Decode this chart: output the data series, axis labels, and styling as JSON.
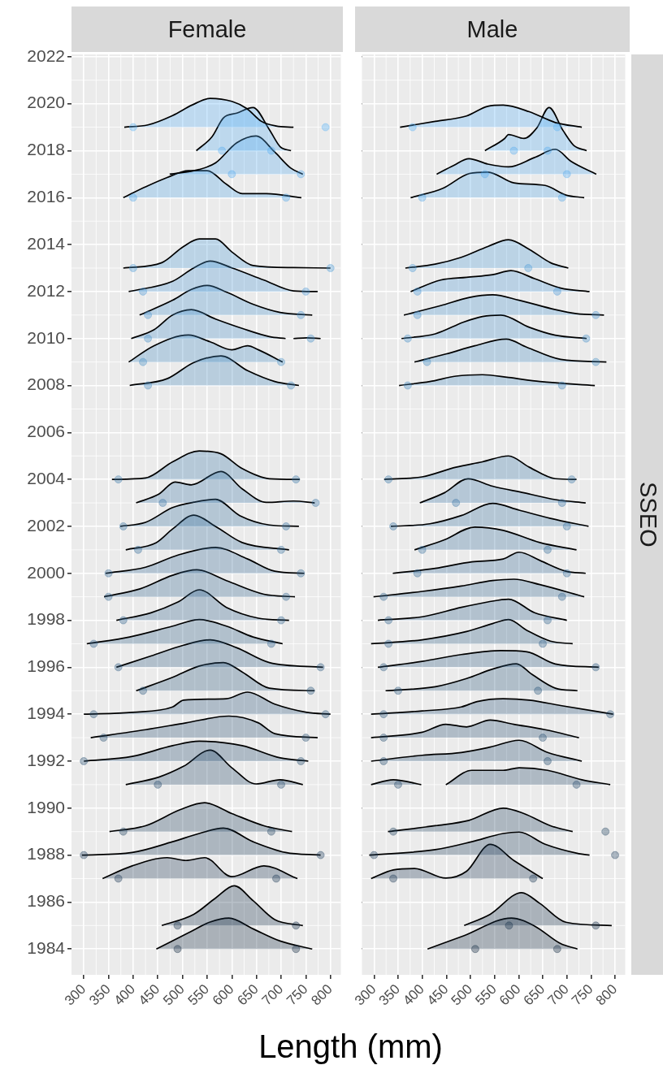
{
  "chart_data": [
    {
      "type": "area",
      "title": "Female",
      "xlabel": "Length (mm)",
      "xlim": [
        275,
        821
      ],
      "ylim": [
        1982.9,
        2022.1
      ],
      "xticks": [
        300,
        350,
        400,
        450,
        500,
        550,
        600,
        650,
        700,
        750,
        800
      ],
      "yticks": [
        1984,
        1986,
        1988,
        1990,
        1992,
        1994,
        1996,
        1998,
        2000,
        2002,
        2004,
        2006,
        2008,
        2010,
        2012,
        2014,
        2016,
        2018,
        2020,
        2022
      ],
      "grid": true,
      "series": [
        {
          "color": "#132b43",
          "x": [
            447,
            512,
            556,
            594,
            643,
            698,
            763
          ],
          "values": [
            1984,
            1984.69,
            1985.15,
            1985.32,
            1984.86,
            1984.34,
            1984
          ]
        },
        {
          "color": "#152f48",
          "x": [
            458,
            523,
            567,
            605,
            643,
            687,
            744
          ],
          "values": [
            1985,
            1985.48,
            1986.17,
            1986.69,
            1986.06,
            1985.25,
            1985
          ]
        },
        {
          "color": "#193652",
          "x": [
            338,
            398,
            469,
            507,
            545,
            600,
            665,
            733
          ],
          "values": [
            1987,
            1987.54,
            1987.89,
            1987.77,
            1987.89,
            1987.08,
            1987.54,
            1987
          ]
        },
        {
          "color": "#1b3a58",
          "x": [
            296,
            398,
            480,
            534,
            583,
            643,
            709,
            780
          ],
          "values": [
            1988,
            1988.11,
            1988.57,
            1988.92,
            1989.15,
            1988.57,
            1988.11,
            1988
          ]
        },
        {
          "color": "#1d3e5d",
          "x": [
            352,
            425,
            496,
            545,
            600,
            665,
            722
          ],
          "values": [
            1989,
            1989.25,
            1989.94,
            1990.23,
            1989.77,
            1989.25,
            1989
          ]
        },
        {
          "color": "#204667",
          "x": [
            385,
            452,
            502,
            556,
            600,
            649,
            698,
            744
          ],
          "values": [
            1991,
            1991.32,
            1991.78,
            1992.47,
            1991.72,
            1991.03,
            1991.21,
            1991
          ]
        },
        {
          "color": "#224a6c",
          "x": [
            300,
            398,
            480,
            534,
            621,
            698,
            755
          ],
          "values": [
            1992,
            1992.2,
            1992.66,
            1992.85,
            1992.66,
            1992.14,
            1992
          ]
        },
        {
          "color": "#244d71",
          "x": [
            314,
            425,
            507,
            594,
            654,
            687,
            774
          ],
          "values": [
            1993,
            1993.34,
            1993.63,
            1993.92,
            1993.63,
            1993.17,
            1993
          ]
        },
        {
          "color": "#265176",
          "x": [
            300,
            398,
            480,
            502,
            589,
            632,
            687,
            752,
            800
          ],
          "values": [
            1994,
            1994.08,
            1994.31,
            1994.6,
            1994.66,
            1994.94,
            1994.43,
            1994.08,
            1994
          ]
        },
        {
          "color": "#28557c",
          "x": [
            406,
            480,
            534,
            583,
            621,
            676,
            768
          ],
          "values": [
            1995,
            1995.57,
            1996.05,
            1996.2,
            1995.8,
            1995.11,
            1995
          ]
        },
        {
          "color": "#2a5981",
          "x": [
            366,
            436,
            502,
            556,
            610,
            676,
            785
          ],
          "values": [
            1996,
            1996.48,
            1996.94,
            1997.17,
            1996.83,
            1996.2,
            1996
          ]
        },
        {
          "color": "#2c5d86",
          "x": [
            306,
            393,
            480,
            534,
            589,
            643,
            703
          ],
          "values": [
            1997,
            1997.29,
            1997.75,
            1998.03,
            1997.75,
            1997.29,
            1997
          ]
        },
        {
          "color": "#2e618b",
          "x": [
            366,
            436,
            491,
            534,
            589,
            654,
            716
          ],
          "values": [
            1998,
            1998.32,
            1998.78,
            1999.3,
            1998.55,
            1998.09,
            1998
          ]
        },
        {
          "color": "#306490",
          "x": [
            341,
            414,
            480,
            529,
            589,
            665,
            728
          ],
          "values": [
            1999,
            1999.34,
            1999.92,
            2000.15,
            1999.69,
            1999.11,
            1999
          ]
        },
        {
          "color": "#326895",
          "x": [
            344,
            425,
            491,
            567,
            632,
            687,
            747
          ],
          "values": [
            2000,
            2000.26,
            2000.78,
            2001.1,
            2000.61,
            2000.09,
            2000
          ]
        },
        {
          "color": "#346c9a",
          "x": [
            385,
            447,
            480,
            523,
            567,
            621,
            716
          ],
          "values": [
            2001,
            2001.31,
            2001.89,
            2002.48,
            2002,
            2001.31,
            2001
          ]
        },
        {
          "color": "#3570a0",
          "x": [
            374,
            425,
            480,
            523,
            567,
            616,
            676,
            736
          ],
          "values": [
            2002,
            2002.17,
            2002.8,
            2003.03,
            2003.15,
            2002.46,
            2002.06,
            2002
          ]
        },
        {
          "color": "#3774a5",
          "x": [
            406,
            452,
            485,
            518,
            578,
            621,
            670,
            725,
            768
          ],
          "values": [
            2003,
            2003.37,
            2003.89,
            2003.77,
            2004.34,
            2003.6,
            2003.02,
            2003.08,
            2003
          ]
        },
        {
          "color": "#3978aa",
          "x": [
            357,
            425,
            480,
            534,
            578,
            621,
            676,
            738
          ],
          "values": [
            2004,
            2004.06,
            2004.75,
            2005.21,
            2005.09,
            2004.46,
            2004.03,
            2004
          ]
        },
        {
          "color": "#4187be",
          "x": [
            393,
            469,
            523,
            578,
            632,
            687,
            736
          ],
          "values": [
            2008,
            2008.29,
            2008.98,
            2009.26,
            2008.63,
            2008.17,
            2008
          ]
        },
        {
          "color": "#438bc4",
          "x": [
            391,
            442,
            512,
            556,
            600,
            632,
            654,
            703
          ],
          "values": [
            2009,
            2009.69,
            2010.15,
            2009.86,
            2009.52,
            2009.69,
            2009.52,
            2009
          ]
        },
        {
          "color": "#458fc9",
          "x": [
            396,
            442,
            480,
            518,
            567,
            621,
            676,
            709,
            717,
            725,
            752,
            780
          ],
          "values": [
            2010,
            2010.37,
            2011,
            2011.23,
            2010.83,
            2010.43,
            2010.08,
            2010,
            null,
            2010,
            2010.03,
            2010
          ]
        },
        {
          "color": "#4792ce",
          "x": [
            413,
            480,
            518,
            550,
            589,
            643,
            698,
            763
          ],
          "values": [
            2011,
            2011.63,
            2012.09,
            2012.26,
            2011.98,
            2011.46,
            2011.11,
            2011
          ]
        },
        {
          "color": "#4996d3",
          "x": [
            391,
            480,
            523,
            556,
            600,
            665,
            725,
            774
          ],
          "values": [
            2012,
            2012.44,
            2013.01,
            2013.3,
            2013.01,
            2012.49,
            2012.03,
            2012
          ]
        },
        {
          "color": "#4b9ad8",
          "x": [
            380,
            458,
            502,
            534,
            567,
            600,
            643,
            725,
            800
          ],
          "values": [
            2013,
            2013.23,
            2013.92,
            2014.24,
            2014.24,
            2013.69,
            2013.11,
            2013.02,
            2013
          ]
        },
        {
          "color": "#50a6e8",
          "x": [
            380,
            425,
            469,
            512,
            550,
            589,
            621,
            670,
            741
          ],
          "values": [
            2016,
            2016.46,
            2016.86,
            2017.15,
            2017.15,
            2016.57,
            2016.17,
            2016.17,
            2016
          ]
        },
        {
          "color": "#52a9ed",
          "x": [
            474,
            534,
            567,
            610,
            649,
            687,
            720,
            744
          ],
          "values": [
            2017,
            2017.2,
            2017.48,
            2018.34,
            2018.63,
            2017.94,
            2017.25,
            2017
          ]
        },
        {
          "color": "#54adf2",
          "x": [
            528,
            560,
            583,
            610,
            643,
            676,
            698,
            720
          ],
          "values": [
            2018,
            2018.6,
            2019.4,
            2019.6,
            2019.84,
            2018.9,
            2018.17,
            2018
          ]
        },
        {
          "color": "#56b1f7",
          "x": [
            382,
            430,
            480,
            520,
            556,
            600,
            630,
            660,
            690,
            725
          ],
          "values": [
            2019,
            2019.1,
            2019.5,
            2019.95,
            2020.23,
            2020.1,
            2019.8,
            2019.25,
            2019.05,
            2019
          ]
        },
        {
          "type": "scatter",
          "marker": "circle",
          "x": [
            490,
            730,
            490,
            730,
            370,
            690,
            300,
            780,
            380,
            680,
            450,
            700,
            300,
            740,
            340,
            750,
            320,
            790,
            420,
            760,
            370,
            780,
            320,
            680,
            380,
            700,
            350,
            710,
            350,
            740,
            410,
            700,
            380,
            710,
            460,
            770,
            370,
            730,
            430,
            720,
            420,
            700,
            430,
            760,
            430,
            740,
            420,
            750,
            400,
            800,
            400,
            710,
            600,
            740,
            580,
            680,
            400,
            790
          ],
          "values": [
            1984,
            1984,
            1985,
            1985,
            1987,
            1987,
            1988,
            1988,
            1989,
            1989,
            1991,
            1991,
            1992,
            1992,
            1993,
            1993,
            1994,
            1994,
            1995,
            1995,
            1996,
            1996,
            1997,
            1997,
            1998,
            1998,
            1999,
            1999,
            2000,
            2000,
            2001,
            2001,
            2002,
            2002,
            2003,
            2003,
            2004,
            2004,
            2008,
            2008,
            2009,
            2009,
            2010,
            2010,
            2011,
            2011,
            2012,
            2012,
            2013,
            2013,
            2016,
            2016,
            2017,
            2017,
            2018,
            2018,
            2019,
            2019
          ],
          "colors": [
            "#132b43",
            "#132b43",
            "#152f48",
            "#152f48",
            "#193652",
            "#193652",
            "#1b3a58",
            "#1b3a58",
            "#1d3e5d",
            "#1d3e5d",
            "#204667",
            "#204667",
            "#224a6c",
            "#224a6c",
            "#244d71",
            "#244d71",
            "#265176",
            "#265176",
            "#28557c",
            "#28557c",
            "#2a5981",
            "#2a5981",
            "#2c5d86",
            "#2c5d86",
            "#2e618b",
            "#2e618b",
            "#306490",
            "#306490",
            "#326895",
            "#326895",
            "#346c9a",
            "#346c9a",
            "#3570a0",
            "#3570a0",
            "#3774a5",
            "#3774a5",
            "#3978aa",
            "#3978aa",
            "#4187be",
            "#4187be",
            "#438bc4",
            "#438bc4",
            "#458fc9",
            "#458fc9",
            "#4792ce",
            "#4792ce",
            "#4996d3",
            "#4996d3",
            "#4b9ad8",
            "#4b9ad8",
            "#50a6e8",
            "#50a6e8",
            "#52a9ed",
            "#52a9ed",
            "#54adf2",
            "#54adf2",
            "#56b1f7",
            "#56b1f7"
          ]
        }
      ]
    },
    {
      "type": "area",
      "title": "Male",
      "annotations": [
        "SSEO"
      ],
      "tick_labels": "x",
      "xlim": [
        275,
        821
      ],
      "ylim": [
        1982.9,
        2022.1
      ],
      "xticks": [
        300,
        350,
        400,
        450,
        500,
        550,
        600,
        650,
        700,
        750,
        800
      ],
      "yticks": [
        1984,
        1986,
        1988,
        1990,
        1992,
        1994,
        1996,
        1998,
        2000,
        2002,
        2004,
        2006,
        2008,
        2010,
        2012,
        2014,
        2016,
        2018,
        2020,
        2022
      ],
      "grid": true,
      "series": [
        {
          "color": "#132b43",
          "x": [
            411,
            487,
            585,
            633,
            687,
            722
          ],
          "values": [
            1984,
            1984.57,
            1985.32,
            1984.98,
            1984.23,
            1984
          ]
        },
        {
          "color": "#152f48",
          "x": [
            487,
            541,
            606,
            644,
            698,
            793
          ],
          "values": [
            1985,
            1985.48,
            1986.4,
            1985.94,
            1985.14,
            1985
          ]
        },
        {
          "color": "#193652",
          "x": [
            294,
            340,
            384,
            449,
            492,
            541,
            590,
            650
          ],
          "values": [
            1987,
            1987.37,
            1987.43,
            1987.02,
            1987.31,
            1988.46,
            1987.77,
            1987
          ]
        },
        {
          "color": "#1b3a58",
          "x": [
            290,
            427,
            503,
            568,
            601,
            655,
            725,
            747
          ],
          "values": [
            1988,
            1988.23,
            1988.57,
            1988.92,
            1988.98,
            1988.46,
            1988.06,
            1988
          ]
        },
        {
          "color": "#1d3e5d",
          "x": [
            329,
            427,
            497,
            568,
            611,
            666,
            712
          ],
          "values": [
            1989,
            1989.25,
            1989.48,
            1990,
            1989.77,
            1989.25,
            1989
          ]
        },
        {
          "color": "#204667",
          "x": [
            294,
            340,
            398,
            420,
            449,
            503,
            568,
            601,
            660,
            731,
            790
          ],
          "values": [
            1991,
            1991.21,
            1991,
            null,
            1991,
            1991.61,
            1991.61,
            1991.72,
            1991.61,
            1991.21,
            1991
          ]
        },
        {
          "color": "#224a6c",
          "x": [
            294,
            400,
            481,
            541,
            601,
            660,
            731
          ],
          "values": [
            1992,
            1992.25,
            1992.37,
            1992.6,
            1992.89,
            1992.37,
            1992
          ]
        },
        {
          "color": "#244d71",
          "x": [
            294,
            400,
            449,
            492,
            541,
            590,
            655,
            725
          ],
          "values": [
            1993,
            1993.23,
            1993.57,
            1993.46,
            1993.75,
            1993.57,
            1993.34,
            1993
          ]
        },
        {
          "color": "#265176",
          "x": [
            294,
            400,
            481,
            514,
            568,
            622,
            687,
            796
          ],
          "values": [
            1994,
            1994.14,
            1994.31,
            1994.54,
            1994.66,
            1994.6,
            1994.37,
            1994
          ]
        },
        {
          "color": "#28557c",
          "x": [
            324,
            427,
            492,
            546,
            595,
            628,
            676,
            722
          ],
          "values": [
            1995,
            1995.17,
            1995.52,
            1995.92,
            1996.15,
            1995.69,
            1995.11,
            1995
          ]
        },
        {
          "color": "#2a5981",
          "x": [
            308,
            400,
            481,
            563,
            617,
            676,
            766
          ],
          "values": [
            1996,
            1996.25,
            1996.54,
            1996.71,
            1996.66,
            1996.14,
            1996
          ]
        },
        {
          "color": "#2c5d86",
          "x": [
            294,
            400,
            492,
            546,
            579,
            617,
            666,
            712
          ],
          "values": [
            1997,
            1997.17,
            1997.52,
            1997.86,
            1998.03,
            1997.57,
            1997.11,
            1997
          ]
        },
        {
          "color": "#2e618b",
          "x": [
            308,
            400,
            481,
            536,
            579,
            633,
            700
          ],
          "values": [
            1998,
            1998.15,
            1998.55,
            1998.78,
            1998.9,
            1998.32,
            1998
          ]
        },
        {
          "color": "#306490",
          "x": [
            299,
            400,
            481,
            546,
            590,
            644,
            736
          ],
          "values": [
            1999,
            1999.23,
            1999.46,
            1999.69,
            1999.75,
            1999.52,
            1999
          ]
        },
        {
          "color": "#326895",
          "x": [
            339,
            427,
            503,
            568,
            601,
            644,
            698,
            739
          ],
          "values": [
            2000,
            2000.21,
            2000.49,
            2000.61,
            2000.9,
            2000.55,
            2000.09,
            2000
          ]
        },
        {
          "color": "#346c9a",
          "x": [
            384,
            446,
            509,
            568,
            644,
            720
          ],
          "values": [
            2001,
            2001.43,
            2001.97,
            2001.83,
            2001.31,
            2001
          ]
        },
        {
          "color": "#3570a0",
          "x": [
            335,
            416,
            481,
            546,
            601,
            666,
            745
          ],
          "values": [
            2002,
            2002.11,
            2002.46,
            2002.98,
            2002.69,
            2002.34,
            2002
          ]
        },
        {
          "color": "#3774a5",
          "x": [
            395,
            446,
            495,
            546,
            611,
            676,
            739
          ],
          "values": [
            2003,
            2003.43,
            2004.03,
            2003.71,
            2003.43,
            2003.14,
            2003
          ]
        },
        {
          "color": "#3978aa",
          "x": [
            321,
            400,
            470,
            525,
            579,
            622,
            676,
            720
          ],
          "values": [
            2004,
            2004.11,
            2004.52,
            2004.75,
            2005,
            2004.52,
            2004.03,
            2004
          ]
        },
        {
          "color": "#4187be",
          "x": [
            352,
            416,
            470,
            525,
            579,
            644,
            758
          ],
          "values": [
            2008,
            2008.17,
            2008.4,
            2008.46,
            2008.34,
            2008.17,
            2008
          ]
        },
        {
          "color": "#438bc4",
          "x": [
            384,
            449,
            509,
            574,
            617,
            687,
            782
          ],
          "values": [
            2009,
            2009.34,
            2009.69,
            2009.98,
            2009.63,
            2009.11,
            2009
          ]
        },
        {
          "color": "#458fc9",
          "x": [
            357,
            427,
            487,
            525,
            563,
            622,
            676,
            741
          ],
          "values": [
            2010,
            2010.2,
            2010.71,
            2010.94,
            2011,
            2010.48,
            2010.14,
            2010
          ]
        },
        {
          "color": "#4792ce",
          "x": [
            362,
            438,
            498,
            546,
            601,
            676,
            720,
            777
          ],
          "values": [
            2011,
            2011.4,
            2011.75,
            2011.86,
            2011.63,
            2011.23,
            2011.06,
            2011
          ]
        },
        {
          "color": "#4996d3",
          "x": [
            376,
            438,
            492,
            546,
            584,
            633,
            687,
            747
          ],
          "values": [
            2012,
            2012.49,
            2012.61,
            2012.72,
            2012.89,
            2012.55,
            2012.15,
            2012
          ]
        },
        {
          "color": "#4b9ad8",
          "x": [
            365,
            427,
            481,
            536,
            579,
            622,
            666,
            703
          ],
          "values": [
            2013,
            2013.17,
            2013.46,
            2013.92,
            2014.21,
            2013.8,
            2013.23,
            2013
          ]
        },
        {
          "color": "#50a6e8",
          "x": [
            376,
            443,
            498,
            536,
            590,
            655,
            698,
            736
          ],
          "values": [
            2016,
            2016.4,
            2017.03,
            2017.09,
            2016.63,
            2016.52,
            2016.11,
            2016
          ]
        },
        {
          "color": "#52a9ed",
          "x": [
            430,
            465,
            497,
            536,
            579,
            633,
            676,
            709,
            761
          ],
          "values": [
            2017,
            2017.37,
            2017.66,
            2017.43,
            2017.31,
            2017.71,
            2018.06,
            2017.54,
            2017
          ]
        },
        {
          "color": "#54adf2",
          "x": [
            530,
            571,
            579,
            611,
            638,
            663,
            692,
            714,
            741
          ],
          "values": [
            2018,
            2018.52,
            2018.69,
            2018.52,
            2018.98,
            2019.84,
            2018.86,
            2018.23,
            2018
          ]
        },
        {
          "color": "#56b1f7",
          "x": [
            354,
            427,
            492,
            536,
            568,
            622,
            676,
            731
          ],
          "values": [
            2019,
            2019.25,
            2019.48,
            2019.89,
            2019.94,
            2019.66,
            2019.2,
            2019
          ]
        },
        {
          "type": "scatter",
          "marker": "circle",
          "x": [
            510,
            680,
            580,
            760,
            340,
            630,
            300,
            800,
            340,
            780,
            350,
            720,
            320,
            660,
            320,
            650,
            320,
            790,
            350,
            640,
            320,
            760,
            330,
            650,
            330,
            660,
            320,
            690,
            390,
            700,
            400,
            660,
            340,
            700,
            470,
            690,
            330,
            710,
            370,
            690,
            410,
            760,
            370,
            740,
            390,
            760,
            390,
            680,
            380,
            620,
            400,
            690,
            530,
            700,
            590,
            660,
            380,
            680
          ],
          "values": [
            1984,
            1984,
            1985,
            1985,
            1987,
            1987,
            1988,
            1988,
            1989,
            1989,
            1991,
            1991,
            1992,
            1992,
            1993,
            1993,
            1994,
            1994,
            1995,
            1995,
            1996,
            1996,
            1997,
            1997,
            1998,
            1998,
            1999,
            1999,
            2000,
            2000,
            2001,
            2001,
            2002,
            2002,
            2003,
            2003,
            2004,
            2004,
            2008,
            2008,
            2009,
            2009,
            2010,
            2010,
            2011,
            2011,
            2012,
            2012,
            2013,
            2013,
            2016,
            2016,
            2017,
            2017,
            2018,
            2018,
            2019,
            2019
          ],
          "colors": [
            "#132b43",
            "#132b43",
            "#152f48",
            "#152f48",
            "#193652",
            "#193652",
            "#1b3a58",
            "#1b3a58",
            "#1d3e5d",
            "#1d3e5d",
            "#204667",
            "#204667",
            "#224a6c",
            "#224a6c",
            "#244d71",
            "#244d71",
            "#265176",
            "#265176",
            "#28557c",
            "#28557c",
            "#2a5981",
            "#2a5981",
            "#2c5d86",
            "#2c5d86",
            "#2e618b",
            "#2e618b",
            "#306490",
            "#306490",
            "#326895",
            "#326895",
            "#346c9a",
            "#346c9a",
            "#3570a0",
            "#3570a0",
            "#3774a5",
            "#3774a5",
            "#3978aa",
            "#3978aa",
            "#4187be",
            "#4187be",
            "#438bc4",
            "#438bc4",
            "#458fc9",
            "#458fc9",
            "#4792ce",
            "#4792ce",
            "#4996d3",
            "#4996d3",
            "#4b9ad8",
            "#4b9ad8",
            "#50a6e8",
            "#50a6e8",
            "#52a9ed",
            "#52a9ed",
            "#54adf2",
            "#54adf2",
            "#56b1f7",
            "#56b1f7"
          ]
        }
      ]
    }
  ]
}
